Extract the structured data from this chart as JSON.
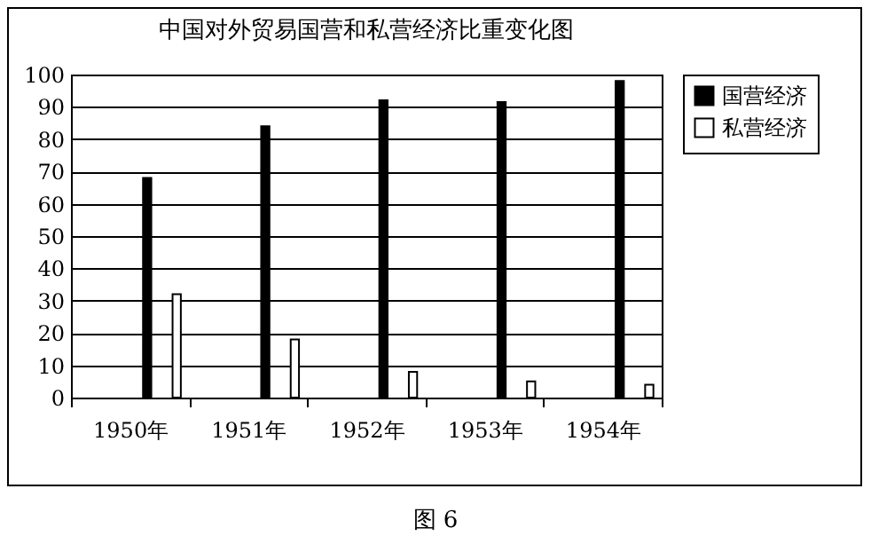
{
  "chart_data": {
    "type": "bar",
    "title": "中国对外贸易国营和私营经济比重变化图",
    "categories": [
      "1950年",
      "1951年",
      "1952年",
      "1953年",
      "1954年"
    ],
    "series": [
      {
        "name": "国营经济",
        "color": "#000000",
        "values": [
          68,
          84,
          92,
          91.5,
          98
        ]
      },
      {
        "name": "私营经济",
        "color": "#ffffff",
        "values": [
          32,
          18,
          8,
          5,
          4
        ]
      }
    ],
    "ylim": [
      0,
      100
    ],
    "yticks": [
      0,
      10,
      20,
      30,
      40,
      50,
      60,
      70,
      80,
      90,
      100
    ],
    "grid": "y",
    "legend": "right",
    "annotations": [
      "图 6"
    ]
  }
}
